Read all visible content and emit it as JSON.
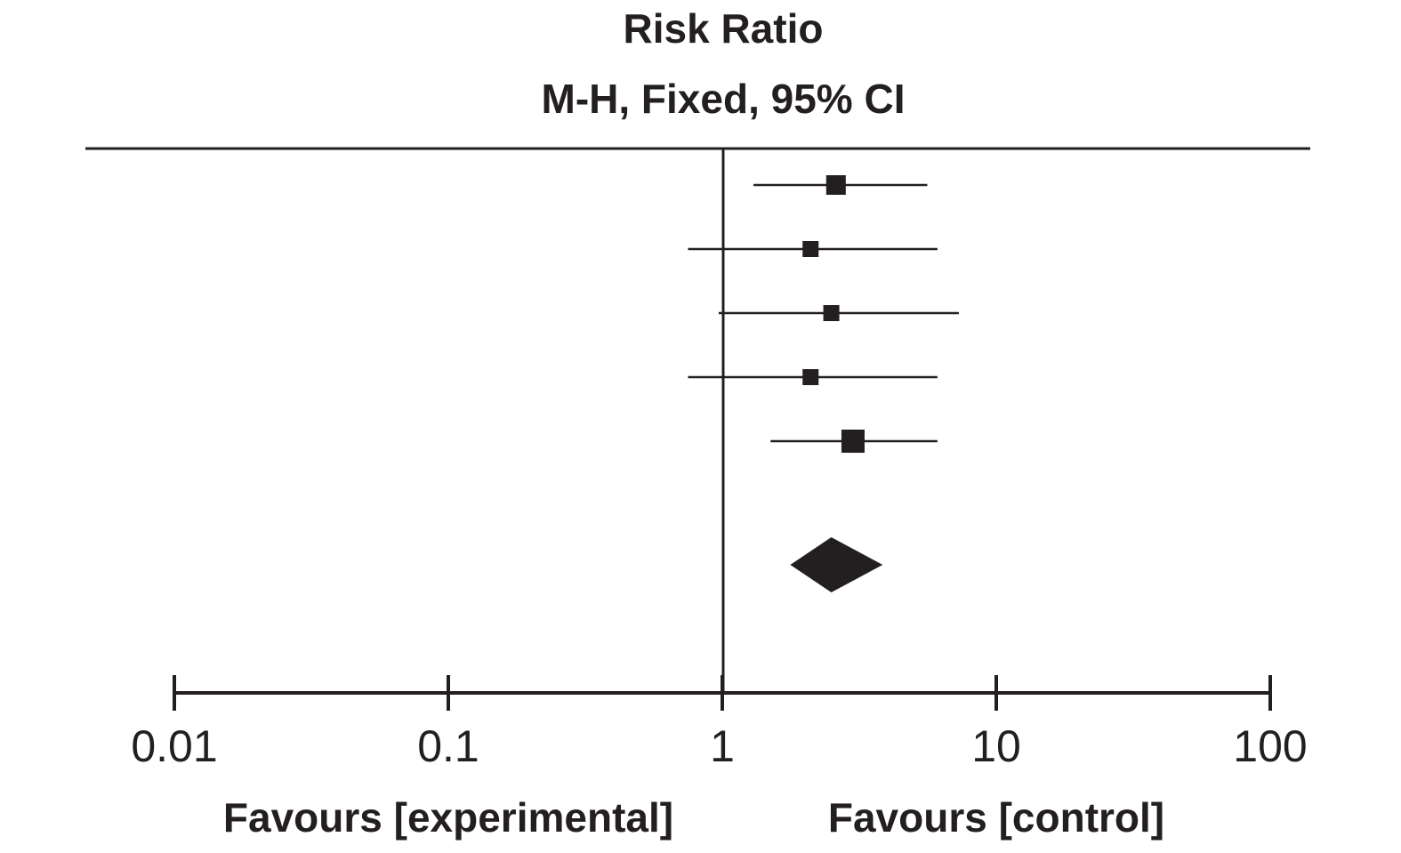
{
  "chart_data": {
    "type": "forest",
    "title": "Risk Ratio",
    "subtitle": "M-H, Fixed, 95% CI",
    "x_scale": "log",
    "xlim": [
      0.01,
      100
    ],
    "reference_value": 1,
    "ticks": [
      {
        "value": 0.01,
        "label": "0.01"
      },
      {
        "value": 0.1,
        "label": "0.1"
      },
      {
        "value": 1,
        "label": "1"
      },
      {
        "value": 10,
        "label": "10"
      },
      {
        "value": 100,
        "label": "100"
      }
    ],
    "favours_left": "Favours [experimental]",
    "favours_right": "Favours [control]",
    "studies": [
      {
        "rr": 2.6,
        "ci_low": 1.3,
        "ci_high": 5.6,
        "weight": 3
      },
      {
        "rr": 2.1,
        "ci_low": 0.75,
        "ci_high": 6.1,
        "weight": 2
      },
      {
        "rr": 2.5,
        "ci_low": 0.97,
        "ci_high": 7.3,
        "weight": 2
      },
      {
        "rr": 2.1,
        "ci_low": 0.75,
        "ci_high": 6.1,
        "weight": 2
      },
      {
        "rr": 3.0,
        "ci_low": 1.5,
        "ci_high": 6.1,
        "weight": 4
      }
    ],
    "pooled": {
      "rr": 2.5,
      "ci_low": 1.77,
      "ci_high": 3.85
    },
    "colors": {
      "ink": "#231f20"
    }
  }
}
